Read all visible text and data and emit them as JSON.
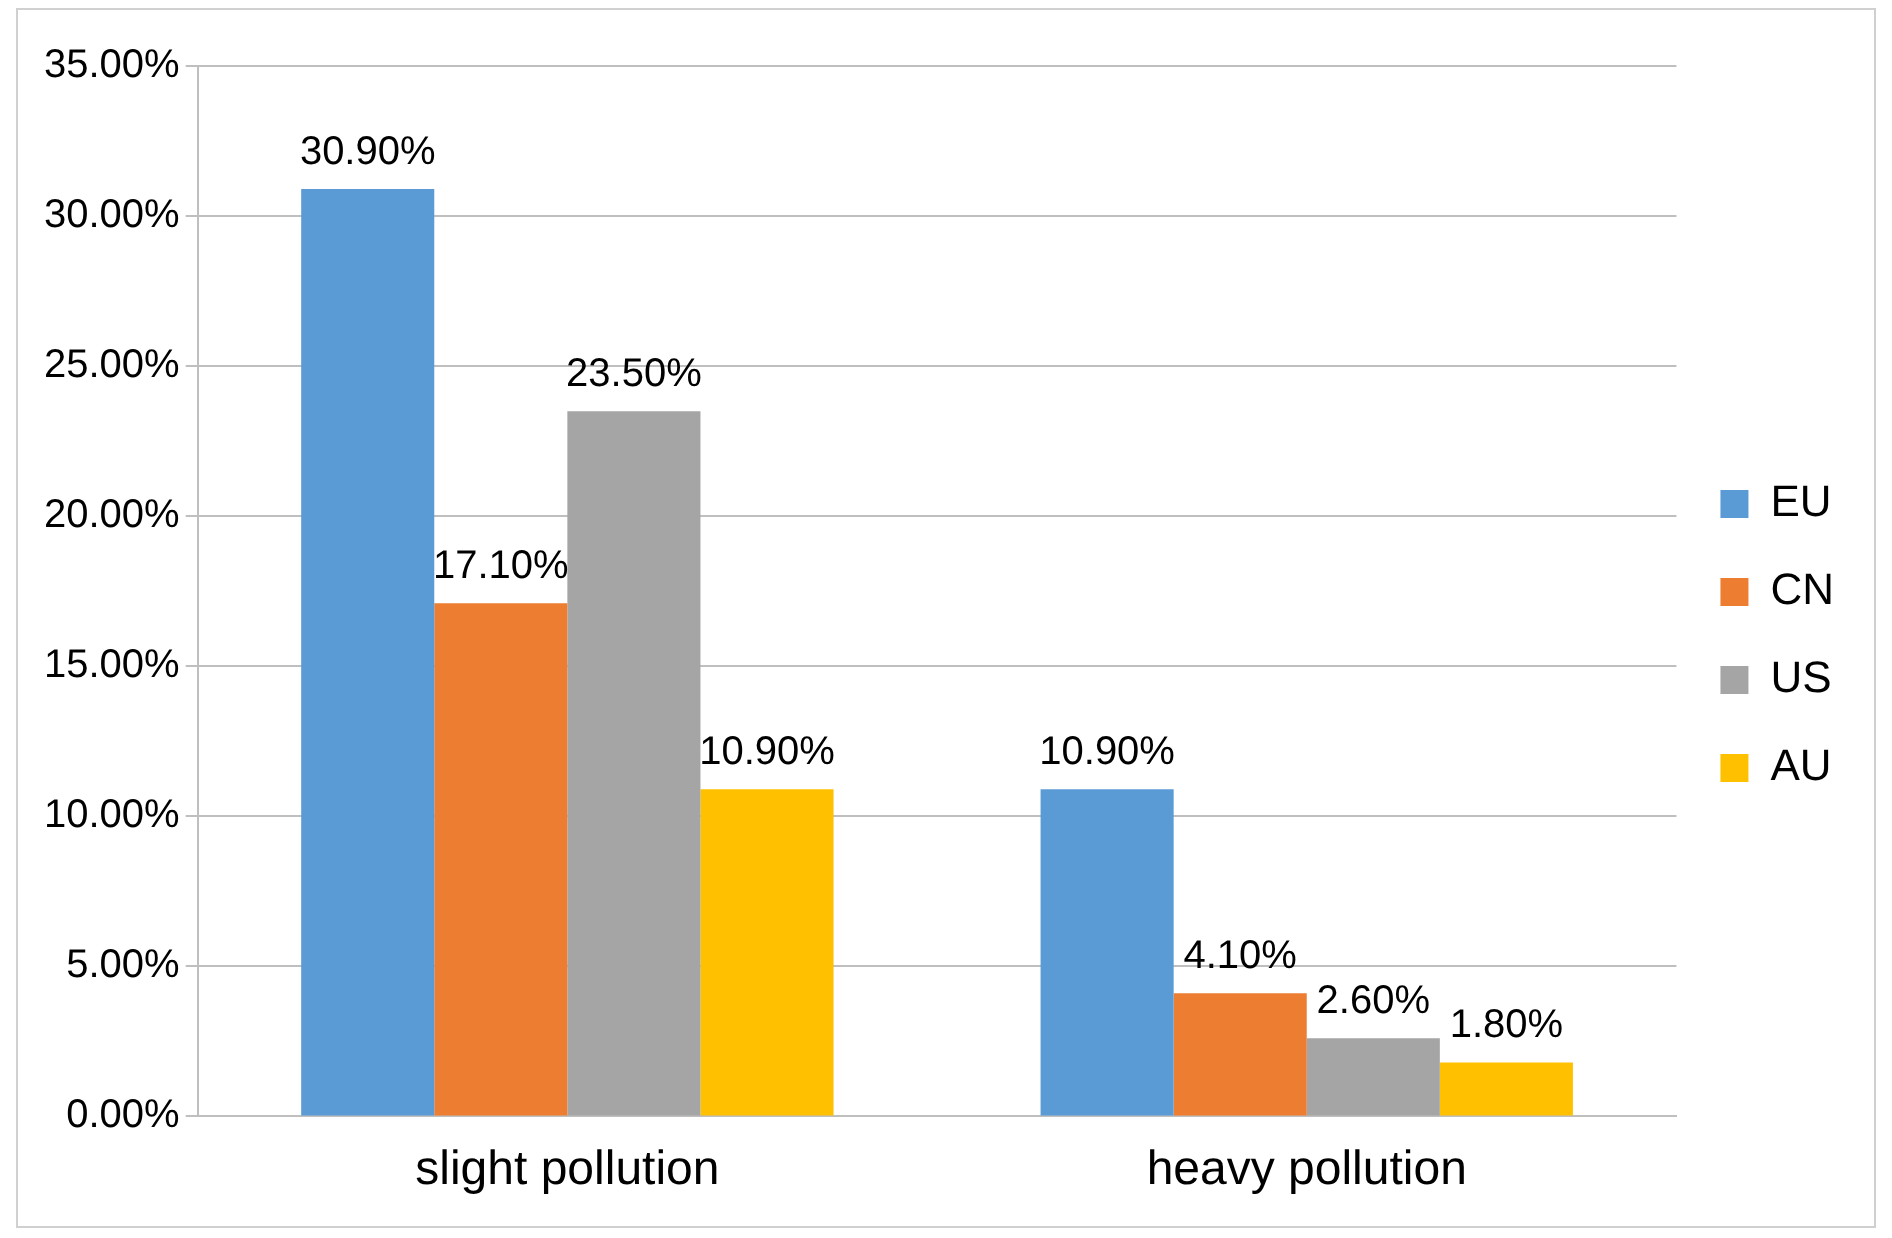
{
  "chart_data": {
    "type": "bar",
    "categories": [
      "slight pollution",
      "heavy pollution"
    ],
    "series": [
      {
        "name": "EU",
        "color": "#5b9bd5",
        "values": [
          30.9,
          10.9
        ],
        "value_labels": [
          "30.90%",
          "10.90%"
        ]
      },
      {
        "name": "CN",
        "color": "#ed7d31",
        "values": [
          17.1,
          4.1
        ],
        "value_labels": [
          "17.10%",
          "4.10%"
        ]
      },
      {
        "name": "US",
        "color": "#a5a5a5",
        "values": [
          23.5,
          2.6
        ],
        "value_labels": [
          "23.50%",
          "2.60%"
        ]
      },
      {
        "name": "AU",
        "color": "#ffc000",
        "values": [
          10.9,
          1.8
        ],
        "value_labels": [
          "10.90%",
          "1.80%"
        ]
      }
    ],
    "ylim": [
      0,
      35
    ],
    "yticks": [
      {
        "value": 0,
        "label": "0.00%"
      },
      {
        "value": 5,
        "label": "5.00%"
      },
      {
        "value": 10,
        "label": "10.00%"
      },
      {
        "value": 15,
        "label": "15.00%"
      },
      {
        "value": 20,
        "label": "20.00%"
      },
      {
        "value": 25,
        "label": "25.00%"
      },
      {
        "value": 30,
        "label": "30.00%"
      },
      {
        "value": 35,
        "label": "35.00%"
      }
    ],
    "grid": "y",
    "legend": "right"
  }
}
